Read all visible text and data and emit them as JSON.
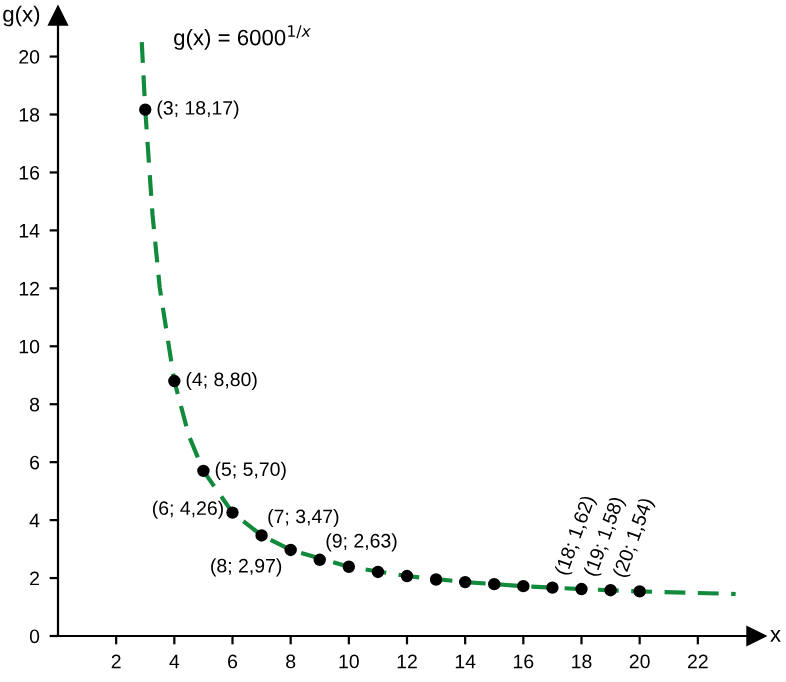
{
  "chart_data": {
    "type": "scatter",
    "xlabel": "x",
    "ylabel": "g(x)",
    "xlim": [
      0,
      24
    ],
    "ylim": [
      0,
      21.4
    ],
    "xticks": [
      2,
      4,
      6,
      8,
      10,
      12,
      14,
      16,
      18,
      20,
      22
    ],
    "yticks": [
      {
        "value": 0,
        "label": "0"
      },
      2,
      4,
      6,
      8,
      10,
      12,
      14,
      16,
      18,
      20
    ],
    "grid": false,
    "series": [
      {
        "type": "line",
        "color": "#128a3c",
        "line_style": "dashed",
        "marker": "none",
        "x": [
          2.88,
          3,
          3.25,
          3.5,
          4,
          4.5,
          5,
          6,
          7,
          8,
          10,
          12,
          14,
          16,
          18,
          20,
          23.3
        ],
        "values": [
          20.5,
          18.17,
          14.54,
          12.01,
          8.8,
          6.91,
          5.7,
          4.26,
          3.47,
          2.97,
          2.39,
          2.07,
          1.86,
          1.72,
          1.62,
          1.54,
          1.45
        ]
      },
      {
        "color": "#000000",
        "marker": "circle",
        "x": [
          3,
          4,
          5,
          6,
          7,
          8,
          9,
          10,
          11,
          12,
          13,
          14,
          15,
          16,
          17,
          18,
          19,
          20
        ],
        "values": [
          18.17,
          8.8,
          5.7,
          4.26,
          3.47,
          2.97,
          2.63,
          2.39,
          2.21,
          2.07,
          1.95,
          1.86,
          1.79,
          1.72,
          1.67,
          1.62,
          1.58,
          1.54
        ]
      }
    ],
    "annotations": [
      "g(x) = 6000$^{1/x}$",
      {
        "text": "(3; 18,17)",
        "x": 3,
        "y": 18.17
      },
      {
        "text": "(4; 8,80)",
        "x": 4,
        "y": 8.8
      },
      {
        "text": "(5; 5,70)",
        "x": 5,
        "y": 5.7
      },
      {
        "text": "(6; 4,26)",
        "x": 6,
        "y": 4.26
      },
      {
        "text": "(7; 3,47)",
        "x": 7,
        "y": 3.47
      },
      {
        "text": "(8; 2,97)",
        "x": 8,
        "y": 2.97
      },
      {
        "text": "(9; 2,63)",
        "x": 9,
        "y": 2.63
      },
      {
        "text": "(18; 1,62)",
        "x": 18,
        "y": 1.62
      },
      {
        "text": "(19; 1,58)",
        "x": 19,
        "y": 1.58
      },
      {
        "text": "(20; 1,54)",
        "x": 20,
        "y": 1.54
      }
    ]
  }
}
